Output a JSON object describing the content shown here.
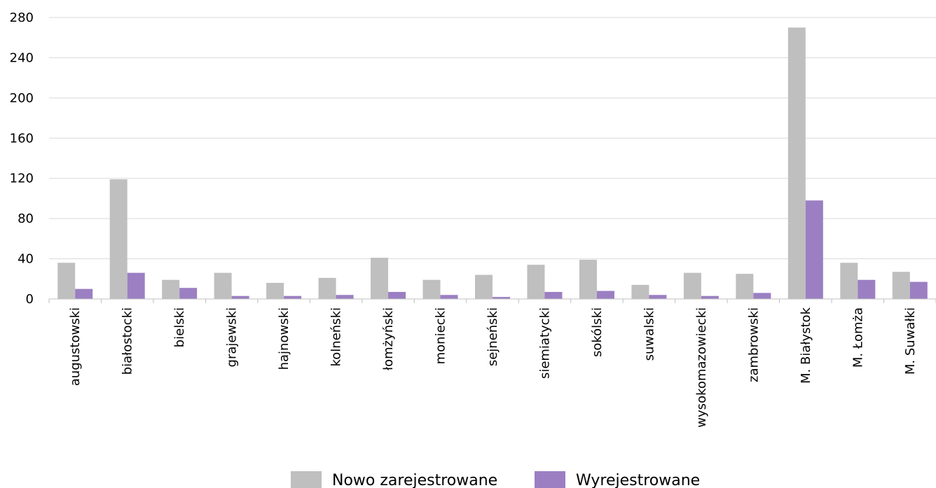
{
  "colors": {
    "series1": "#bfbfbf",
    "series2": "#9b7fc2",
    "grid": "#d9d9d9",
    "axis": "#bfbfbf"
  },
  "chart_data": {
    "type": "bar",
    "categories": [
      "augustowski",
      "białostocki",
      "bielski",
      "grajewski",
      "hajnowski",
      "kolneński",
      "łomżyński",
      "moniecki",
      "sejneński",
      "siemiatycki",
      "sokólski",
      "suwalski",
      "wysokomazowiecki",
      "zambrowski",
      "M. Białystok",
      "M. Łomża",
      "M. Suwałki"
    ],
    "series": [
      {
        "name": "Nowo zarejestrowane",
        "values": [
          36,
          119,
          19,
          26,
          16,
          21,
          41,
          19,
          24,
          34,
          39,
          14,
          26,
          25,
          270,
          36,
          27
        ]
      },
      {
        "name": "Wyrejestrowane",
        "values": [
          10,
          26,
          11,
          3,
          3,
          4,
          7,
          4,
          2,
          7,
          8,
          4,
          3,
          6,
          98,
          19,
          17
        ]
      }
    ],
    "yticks": [
      "0",
      "40",
      "80",
      "120",
      "160",
      "200",
      "240",
      "280"
    ],
    "ylim": [
      0,
      280
    ],
    "grid": true,
    "legend": "bottom"
  }
}
